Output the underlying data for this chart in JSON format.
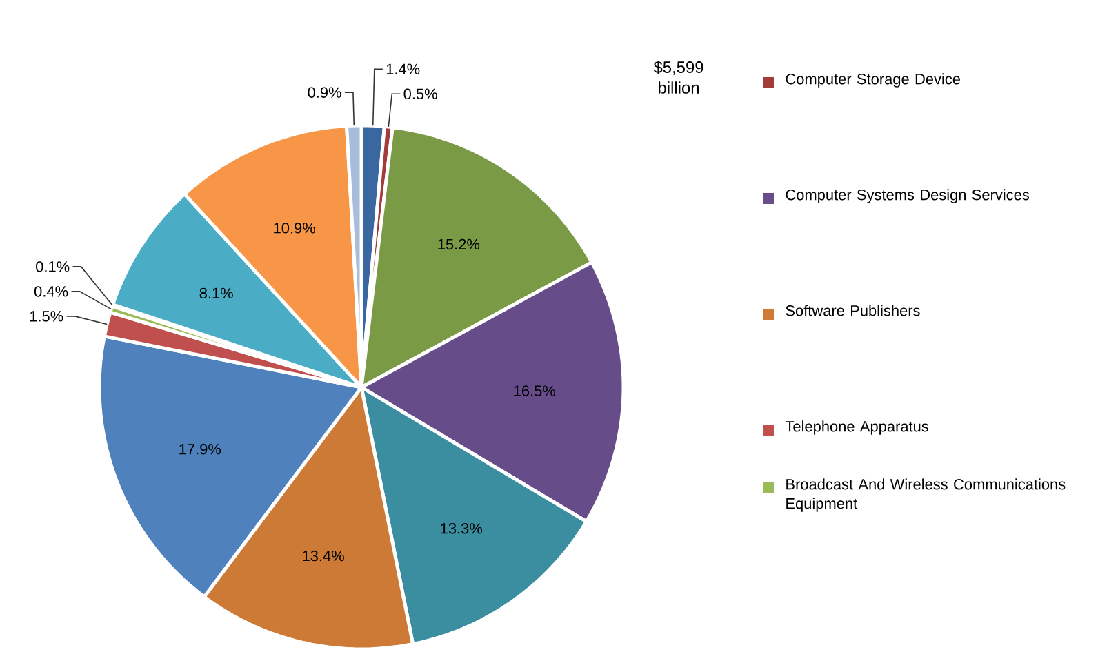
{
  "chart_data": {
    "type": "pie",
    "categories": [
      null,
      "Computer Storage Device",
      null,
      "Computer Systems Design Services",
      null,
      "Software Publishers",
      null,
      "Telephone Apparatus",
      "Broadcast And Wireless Communications Equipment",
      null,
      null,
      null,
      null
    ],
    "values": [
      1.4,
      0.5,
      15.2,
      16.5,
      13.3,
      13.4,
      17.9,
      1.5,
      0.4,
      0.1,
      8.1,
      10.9,
      0.9
    ],
    "colors": [
      "#3b67a0",
      "#a33b3b",
      "#7a9a45",
      "#664c88",
      "#3a8ea0",
      "#cc7a35",
      "#4f81bd",
      "#c0504d",
      "#9bbb59",
      "#8064a2",
      "#4bacc6",
      "#f79646",
      "#a8bcdc"
    ],
    "value_labels": [
      "1.4%",
      "0.5%",
      "15.2%",
      "16.5%",
      "13.3%",
      "13.4%",
      "17.9%",
      "1.5%",
      "0.4%",
      "0.1%",
      "8.1%",
      "10.9%",
      "0.9%"
    ],
    "annotations": [
      "$5,599 billion"
    ],
    "legend": "right"
  }
}
